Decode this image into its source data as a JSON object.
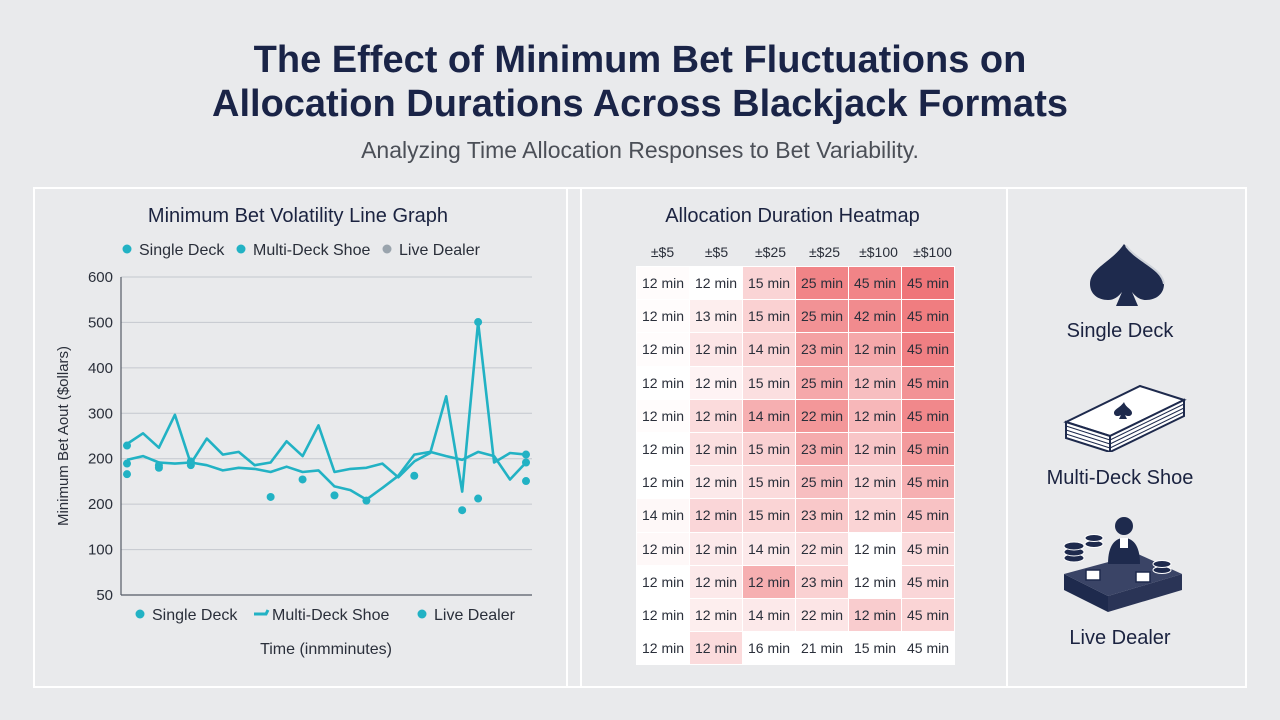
{
  "title_line1": "The Effect of Minimum Bet Fluctuations on",
  "title_line2": "Allocation Durations Across Blackjack Formats",
  "subtitle": "Analyzing Time Allocation Responses to Bet Variability.",
  "colors": {
    "series_line": "#22b2c4",
    "live_dealer_marker": "#9aa4ad",
    "heat_low": "#ffffff",
    "heat_high": "#ee6e72",
    "navy": "#1e2a4d"
  },
  "chart_data": [
    {
      "type": "line",
      "title": "Minimum Bet Volatility Line Graph",
      "xlabel": "Time (inmminutes)",
      "ylabel": "Minimum Bet Aout ($ollars)",
      "y_ticks": [
        "600",
        "500",
        "400",
        "300",
        "200",
        "200",
        "100",
        "50"
      ],
      "grid": true,
      "legend_top": [
        {
          "name": "Single Deck",
          "marker": "dot"
        },
        {
          "name": "Multi-Deck Shoe",
          "marker": "dot"
        },
        {
          "name": "Live Dealer",
          "marker": "dot-gray"
        }
      ],
      "legend_bottom": [
        {
          "name": "Single Deck",
          "marker": "dot"
        },
        {
          "name": "Multi-Deck Shoe",
          "marker": "dash"
        },
        {
          "name": "Live Dealer",
          "marker": "dot"
        }
      ],
      "series": [
        {
          "style": "line",
          "values": [
            [
              0,
              285
            ],
            [
              4,
              305
            ],
            [
              8,
              278
            ],
            [
              12,
              340
            ],
            [
              16,
              248
            ],
            [
              20,
              295
            ],
            [
              24,
              265
            ],
            [
              28,
              270
            ],
            [
              32,
              245
            ],
            [
              36,
              250
            ],
            [
              40,
              290
            ],
            [
              44,
              262
            ],
            [
              48,
              320
            ],
            [
              52,
              232
            ],
            [
              56,
              238
            ],
            [
              60,
              240
            ],
            [
              64,
              248
            ],
            [
              68,
              222
            ],
            [
              72,
              252
            ],
            [
              76,
              268
            ],
            [
              80,
              375
            ],
            [
              84,
              195
            ],
            [
              88,
              515
            ],
            [
              92,
              250
            ],
            [
              96,
              268
            ],
            [
              100,
              265
            ]
          ]
        },
        {
          "style": "line",
          "values": [
            [
              0,
              255
            ],
            [
              4,
              262
            ],
            [
              8,
              250
            ],
            [
              12,
              248
            ],
            [
              16,
              250
            ],
            [
              20,
              245
            ],
            [
              24,
              235
            ],
            [
              28,
              240
            ],
            [
              32,
              238
            ],
            [
              36,
              232
            ],
            [
              40,
              242
            ],
            [
              44,
              232
            ],
            [
              48,
              235
            ],
            [
              52,
              205
            ],
            [
              56,
              198
            ],
            [
              60,
              180
            ],
            [
              64,
              202
            ],
            [
              68,
              225
            ],
            [
              72,
              265
            ],
            [
              76,
              270
            ],
            [
              80,
              262
            ],
            [
              84,
              255
            ],
            [
              88,
              270
            ],
            [
              92,
              262
            ],
            [
              96,
              218
            ],
            [
              100,
              250
            ]
          ]
        },
        {
          "style": "markers",
          "values": [
            [
              0,
              282
            ],
            [
              0,
              248
            ],
            [
              0,
              228
            ],
            [
              8,
              245
            ],
            [
              8,
              240
            ],
            [
              16,
              245
            ],
            [
              16,
              252
            ],
            [
              36,
              185
            ],
            [
              44,
              218
            ],
            [
              52,
              188
            ],
            [
              60,
              178
            ],
            [
              72,
              225
            ],
            [
              84,
              160
            ],
            [
              88,
              182
            ],
            [
              88,
              515
            ],
            [
              100,
              250
            ],
            [
              100,
              265
            ],
            [
              100,
              215
            ]
          ]
        }
      ]
    },
    {
      "type": "heatmap",
      "title": "Allocation Duration Heatmap",
      "columns": [
        "±$5",
        "±$5",
        "±$25",
        "±$25",
        "±$100",
        "±$100"
      ],
      "rows": [
        {
          "cells": [
            "12 min",
            "12 min",
            "15 min",
            "25 min",
            "45 min",
            "45 min"
          ],
          "intensity": [
            0.02,
            0.0,
            0.3,
            0.85,
            0.85,
            0.95
          ]
        },
        {
          "cells": [
            "12 min",
            "13 min",
            "15 min",
            "25 min",
            "42 min",
            "45 min"
          ],
          "intensity": [
            0.02,
            0.12,
            0.32,
            0.75,
            0.8,
            0.9
          ]
        },
        {
          "cells": [
            "12 min",
            "12 min",
            "14 min",
            "23 min",
            "12 min",
            "45 min"
          ],
          "intensity": [
            0.02,
            0.18,
            0.3,
            0.65,
            0.6,
            0.88
          ]
        },
        {
          "cells": [
            "12 min",
            "12 min",
            "15 min",
            "25 min",
            "12 min",
            "45 min"
          ],
          "intensity": [
            0.0,
            0.08,
            0.22,
            0.6,
            0.45,
            0.75
          ]
        },
        {
          "cells": [
            "12 min",
            "12 min",
            "14 min",
            "22 min",
            "12 min",
            "45 min"
          ],
          "intensity": [
            0.02,
            0.25,
            0.55,
            0.72,
            0.5,
            0.82
          ]
        },
        {
          "cells": [
            "12 min",
            "12 min",
            "15 min",
            "23 min",
            "12 min",
            "45 min"
          ],
          "intensity": [
            0.0,
            0.22,
            0.32,
            0.58,
            0.4,
            0.7
          ]
        },
        {
          "cells": [
            "12 min",
            "12 min",
            "15 min",
            "25 min",
            "12 min",
            "45 min"
          ],
          "intensity": [
            0.0,
            0.15,
            0.25,
            0.45,
            0.3,
            0.55
          ]
        },
        {
          "cells": [
            "14 min",
            "12 min",
            "15 min",
            "23 min",
            "12 min",
            "45 min"
          ],
          "intensity": [
            0.05,
            0.28,
            0.3,
            0.38,
            0.3,
            0.42
          ]
        },
        {
          "cells": [
            "12 min",
            "12 min",
            "14 min",
            "22 min",
            "12 min",
            "45 min"
          ],
          "intensity": [
            0.05,
            0.15,
            0.15,
            0.22,
            0.0,
            0.25
          ]
        },
        {
          "cells": [
            "12 min",
            "12 min",
            "12 min",
            "23 min",
            "12 min",
            "45 min"
          ],
          "intensity": [
            0.0,
            0.15,
            0.55,
            0.32,
            0.0,
            0.28
          ]
        },
        {
          "cells": [
            "12 min",
            "12 min",
            "14 min",
            "22 min",
            "12 min",
            "45 min"
          ],
          "intensity": [
            0.0,
            0.12,
            0.15,
            0.18,
            0.35,
            0.3
          ]
        },
        {
          "cells": [
            "12 min",
            "12 min",
            "16 min",
            "21 min",
            "15 min",
            "45 min"
          ],
          "intensity": [
            0.0,
            0.25,
            0.0,
            0.0,
            0.0,
            0.0
          ]
        }
      ]
    }
  ],
  "formats": [
    {
      "label": "Single Deck",
      "icon": "spade-icon"
    },
    {
      "label": "Multi-Deck Shoe",
      "icon": "card-shoe-icon"
    },
    {
      "label": "Live Dealer",
      "icon": "dealer-table-icon"
    }
  ]
}
